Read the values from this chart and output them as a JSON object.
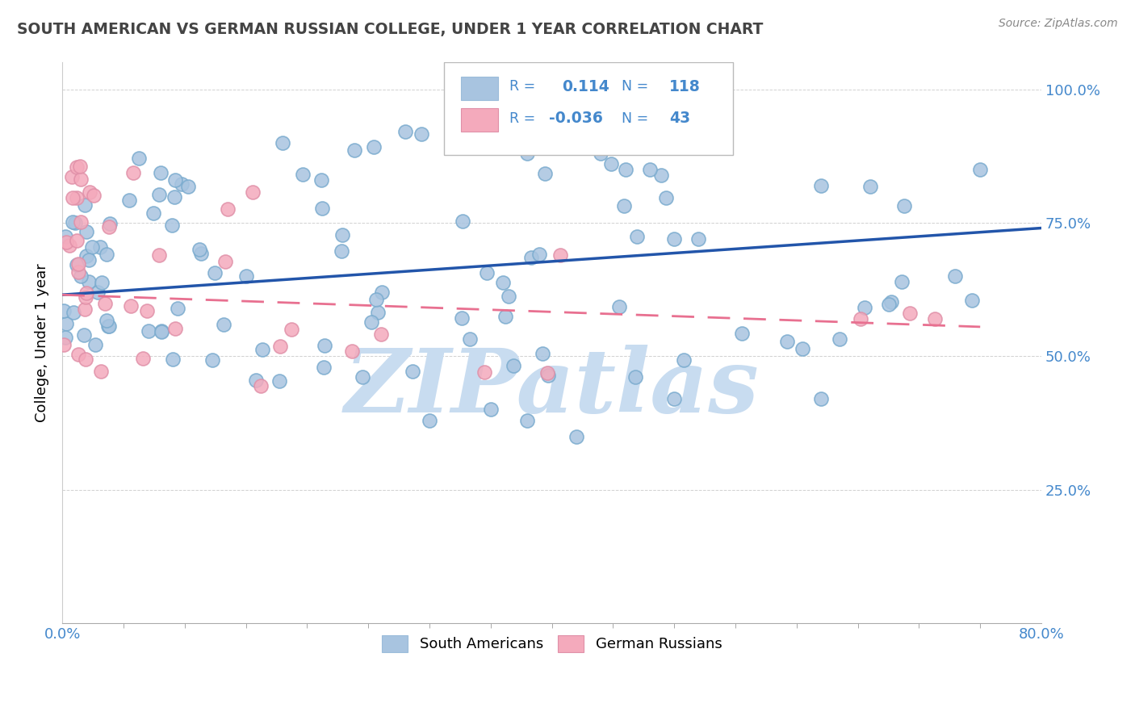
{
  "title": "SOUTH AMERICAN VS GERMAN RUSSIAN COLLEGE, UNDER 1 YEAR CORRELATION CHART",
  "source": "Source: ZipAtlas.com",
  "ylabel": "College, Under 1 year",
  "right_yticks": [
    1.0,
    0.75,
    0.5,
    0.25
  ],
  "right_ytick_labels": [
    "100.0%",
    "75.0%",
    "50.0%",
    "25.0%"
  ],
  "legend_labels": [
    "South Americans",
    "German Russians"
  ],
  "blue_color": "#A8C4E0",
  "pink_color": "#F4AABC",
  "blue_line_color": "#2255AA",
  "pink_line_color": "#E87090",
  "title_color": "#444444",
  "right_tick_color": "#4488CC",
  "r_value_blue": 0.114,
  "r_value_pink": -0.036,
  "n_blue": 118,
  "n_pink": 43,
  "xlim": [
    0.0,
    0.8
  ],
  "ylim": [
    0.0,
    1.05
  ],
  "watermark": "ZIPatlas",
  "watermark_color": "#C8DCF0",
  "background_color": "#FFFFFF",
  "blue_line_y_start": 0.615,
  "blue_line_y_end": 0.74,
  "pink_line_y_start": 0.615,
  "pink_line_y_end": 0.555
}
